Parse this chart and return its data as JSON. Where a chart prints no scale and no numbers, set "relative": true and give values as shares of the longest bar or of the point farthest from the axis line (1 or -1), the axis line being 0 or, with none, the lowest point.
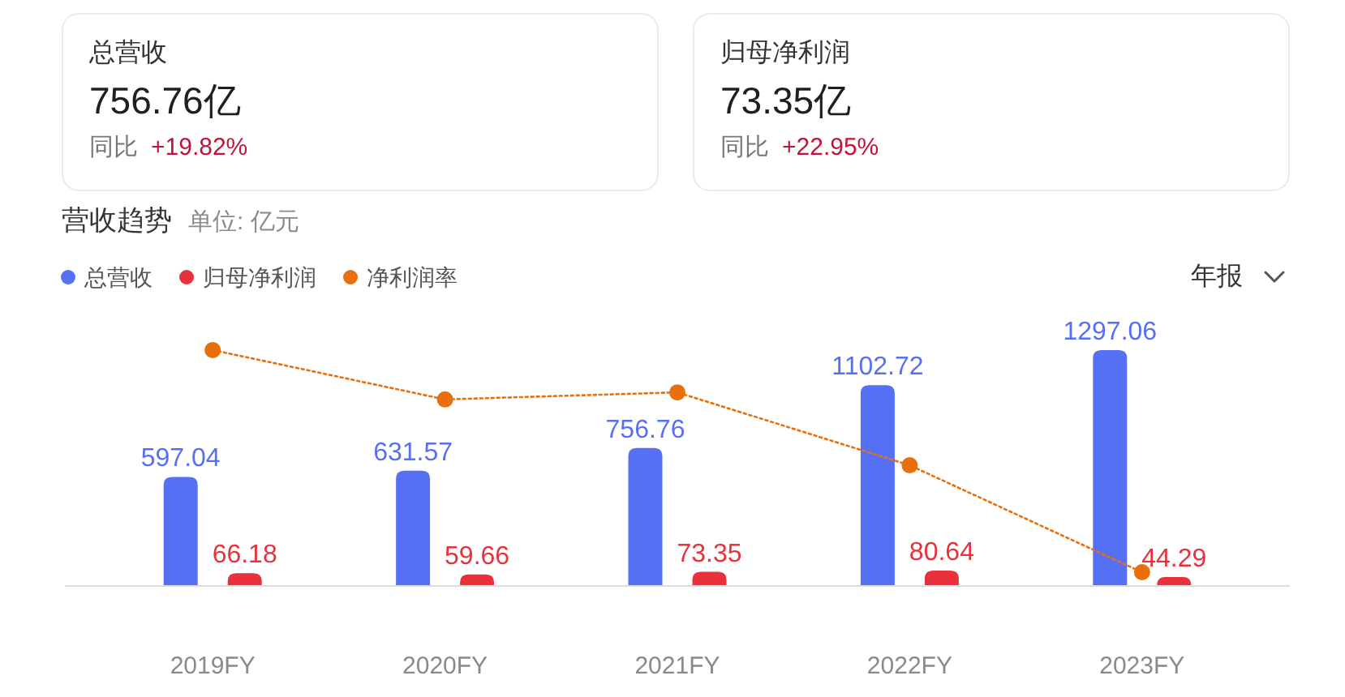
{
  "chart_data": [
    {
      "type": "other",
      "title": "总营收",
      "annotations": [
        "756.76亿",
        "同比",
        "+19.82%"
      ]
    },
    {
      "type": "other",
      "title": "归母净利润",
      "annotations": [
        "73.35亿",
        "同比",
        "+22.95%"
      ]
    },
    {
      "type": "bar",
      "title": "营收趋势",
      "subtitle": "单位: 亿元",
      "categories": [
        "2019FY",
        "2020FY",
        "2021FY",
        "2022FY",
        "2023FY"
      ],
      "series": [
        {
          "name": "总营收",
          "color": "#5670f5",
          "values": [
            597.04,
            631.57,
            756.76,
            1102.72,
            1297.06
          ],
          "value_labels": [
            "597.04",
            "631.57",
            "756.76",
            "1102.72",
            "1297.06"
          ]
        },
        {
          "name": "归母净利润",
          "color": "#e8313b",
          "values": [
            66.18,
            59.66,
            73.35,
            80.64,
            44.29
          ],
          "value_labels": [
            "66.18",
            "59.66",
            "73.35",
            "80.64",
            "44.29"
          ]
        }
      ],
      "legend": "top left",
      "annotations": [
        "年报"
      ]
    },
    {
      "type": "line",
      "relative": true,
      "categories": [
        null,
        null,
        null,
        null,
        null
      ],
      "series": [
        {
          "name": "净利润率",
          "color": "#e8700c",
          "values": [
            1,
            0.79,
            0.82,
            0.51,
            0.055
          ]
        }
      ],
      "marker": "circle",
      "line_style": "dotted",
      "legend": "top left"
    }
  ]
}
